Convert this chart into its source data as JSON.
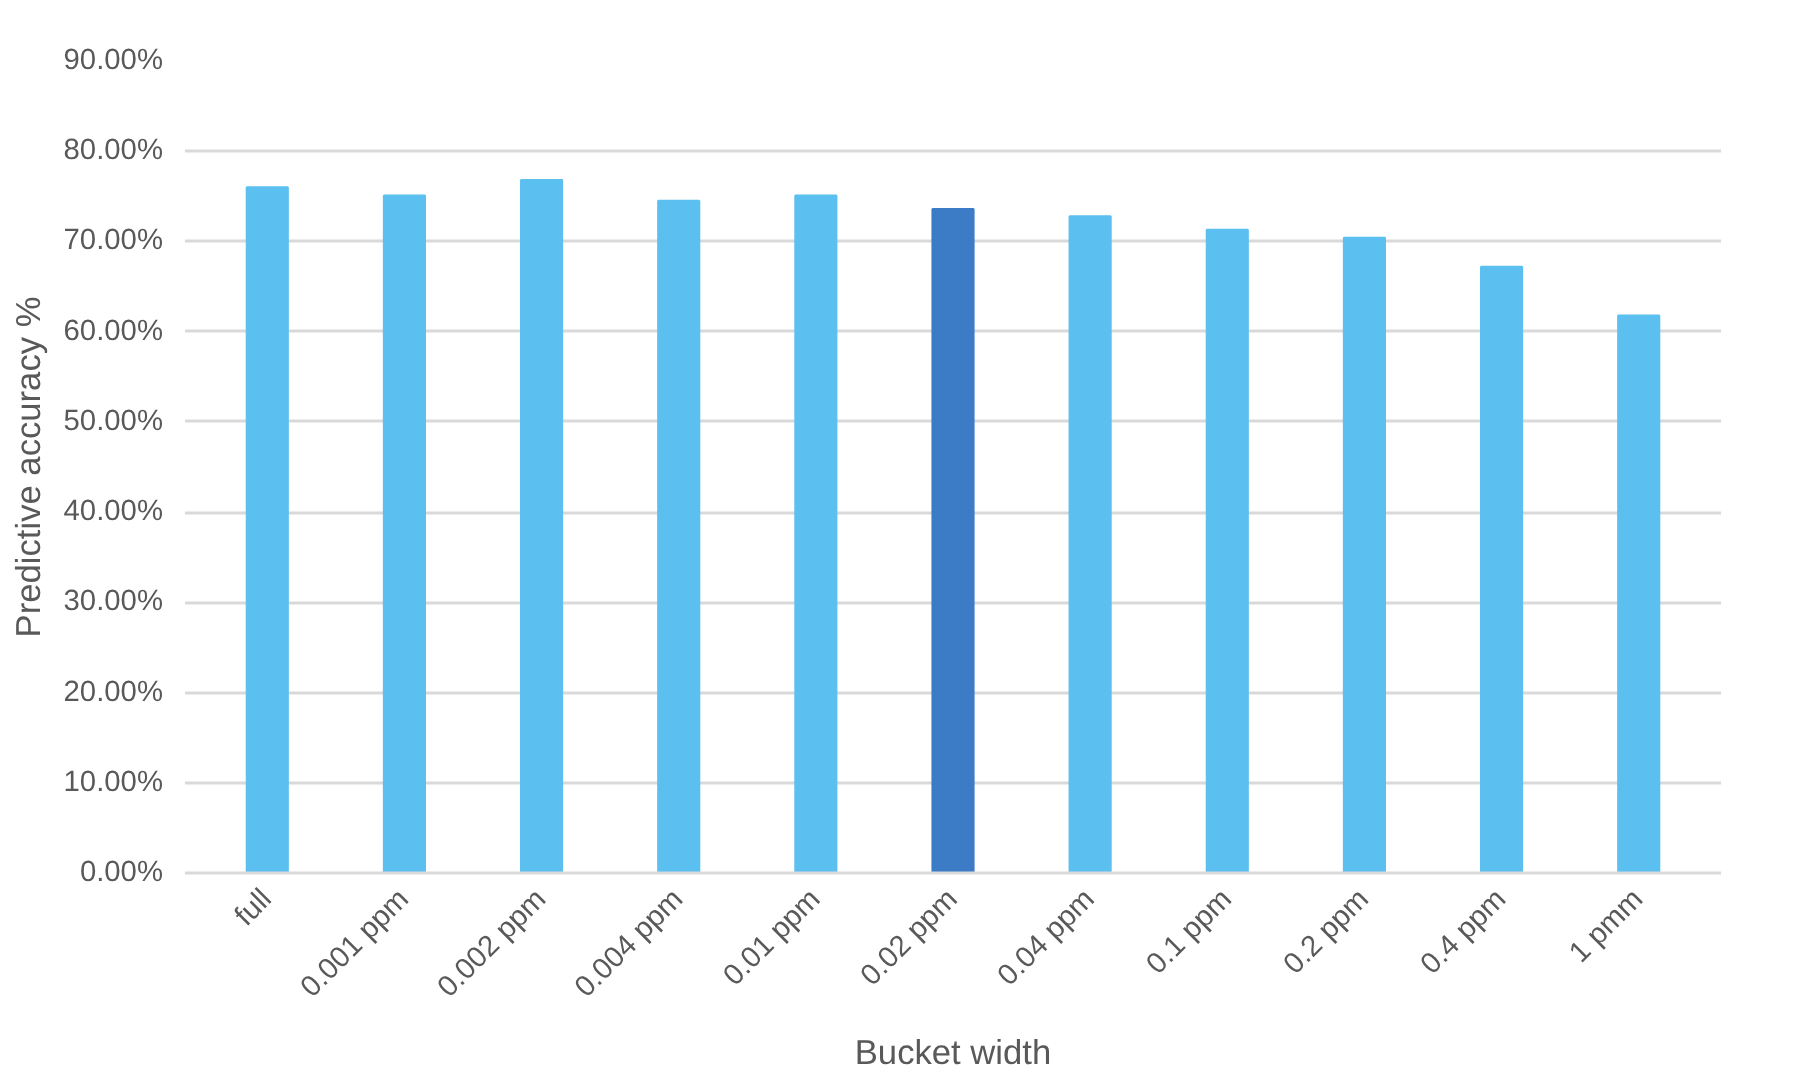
{
  "chart_data": {
    "type": "bar",
    "xlabel": "Bucket width",
    "ylabel": "Predictive accuracy %",
    "categories": [
      "full",
      "0.001 ppm",
      "0.002 ppm",
      "0.004 ppm",
      "0.01 ppm",
      "0.02 ppm",
      "0.04 ppm",
      "0.1 ppm",
      "0.2 ppm",
      "0.4 ppm",
      "1 pmm"
    ],
    "values": [
      76.0,
      75.1,
      76.8,
      74.5,
      75.1,
      73.6,
      72.8,
      71.3,
      70.4,
      67.2,
      61.8
    ],
    "colors": [
      "#5bc0f0",
      "#5bc0f0",
      "#5bc0f0",
      "#5bc0f0",
      "#5bc0f0",
      "#3c7bc6",
      "#5bc0f0",
      "#5bc0f0",
      "#5bc0f0",
      "#5bc0f0",
      "#5bc0f0"
    ],
    "ylim": [
      0,
      90
    ],
    "yticks": [
      {
        "value": 0,
        "label": "0.00%"
      },
      {
        "value": 10,
        "label": "10.00%"
      },
      {
        "value": 20,
        "label": "20.00%"
      },
      {
        "value": 30,
        "label": "30.00%"
      },
      {
        "value": 40,
        "label": "40.00%"
      },
      {
        "value": 50,
        "label": "50.00%"
      },
      {
        "value": 60,
        "label": "60.00%"
      },
      {
        "value": 70,
        "label": "70.00%"
      },
      {
        "value": 80,
        "label": "80.00%"
      },
      {
        "value": 90,
        "label": "90.00%"
      }
    ],
    "grid": "y"
  }
}
